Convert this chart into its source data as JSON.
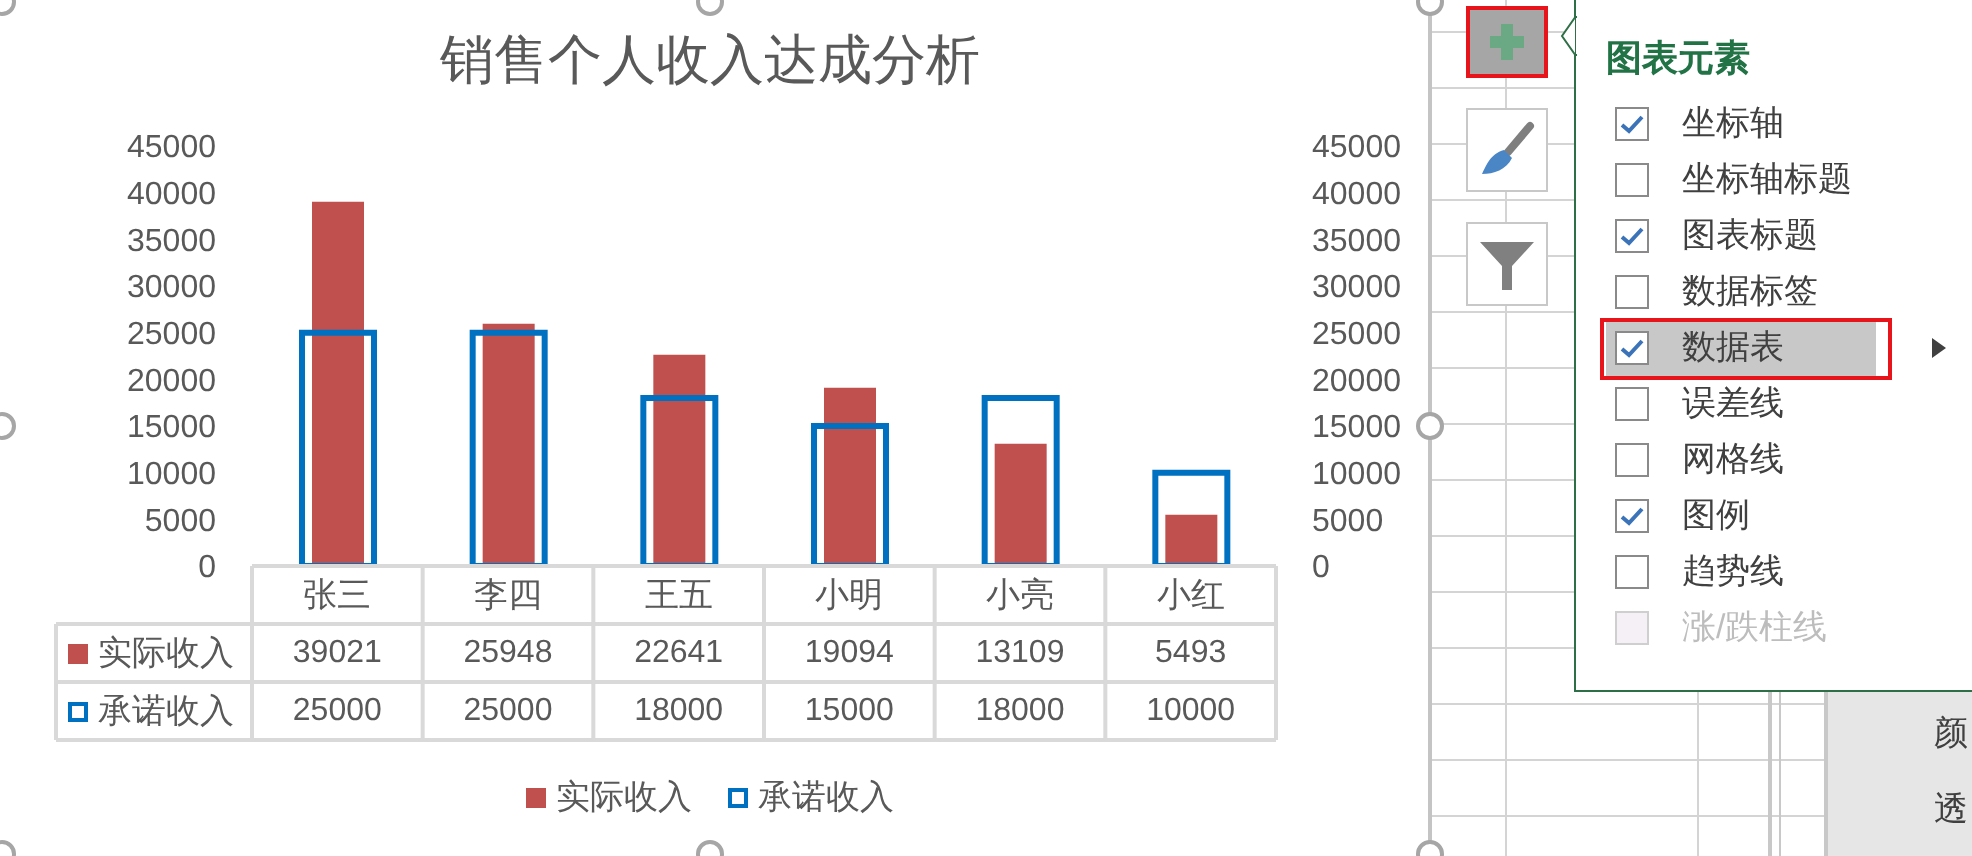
{
  "chart_data": [
    {
      "type": "bar",
      "title": "销售个人收入达成分析",
      "categories": [
        "张三",
        "李四",
        "王五",
        "小明",
        "小亮",
        "小红"
      ],
      "series": [
        {
          "name": "实际收入",
          "color": "#c0504d",
          "values": [
            39021,
            25948,
            22641,
            19094,
            13109,
            5493
          ]
        },
        {
          "name": "承诺收入",
          "color": "#0070c0",
          "axis": "y2",
          "values": [
            25000,
            25000,
            18000,
            15000,
            18000,
            10000
          ]
        }
      ],
      "ylim": [
        0,
        45000
      ],
      "yticks": [
        0,
        5000,
        10000,
        15000,
        20000,
        25000,
        30000,
        35000,
        40000,
        45000
      ],
      "y2lim": [
        0,
        45000
      ],
      "y2ticks": [
        0,
        5000,
        10000,
        15000,
        20000,
        25000,
        30000,
        35000,
        40000,
        45000
      ],
      "legend": "bottom",
      "data_labels": true
    },
    {
      "type": "other",
      "title": "图表元素",
      "annotations": [
        "坐标轴",
        "坐标轴标题",
        "图表标题",
        "数据标签",
        "数据表",
        "误差线",
        "网格线",
        "图例",
        "趋势线",
        "涨/跌柱线"
      ]
    },
    {
      "type": "other",
      "annotations": [
        "颜",
        "透"
      ]
    }
  ]
}
